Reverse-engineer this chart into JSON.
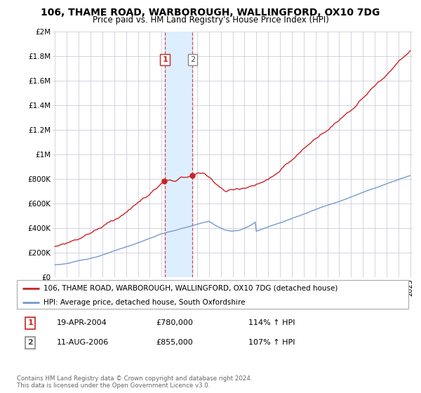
{
  "title": "106, THAME ROAD, WARBOROUGH, WALLINGFORD, OX10 7DG",
  "subtitle": "Price paid vs. HM Land Registry's House Price Index (HPI)",
  "ylim": [
    0,
    2000000
  ],
  "yticks": [
    0,
    200000,
    400000,
    600000,
    800000,
    1000000,
    1200000,
    1400000,
    1600000,
    1800000,
    2000000
  ],
  "ytick_labels": [
    "£0",
    "£200K",
    "£400K",
    "£600K",
    "£800K",
    "£1M",
    "£1.2M",
    "£1.4M",
    "£1.6M",
    "£1.8M",
    "£2M"
  ],
  "hpi_color": "#7799cc",
  "price_color": "#cc2222",
  "transaction1": {
    "date": "19-APR-2004",
    "price": 780000,
    "hpi_pct": "114%",
    "label": "1",
    "year": 2004.29
  },
  "transaction2": {
    "date": "11-AUG-2006",
    "price": 855000,
    "hpi_pct": "107%",
    "label": "2",
    "year": 2006.62
  },
  "legend_line1": "106, THAME ROAD, WARBOROUGH, WALLINGFORD, OX10 7DG (detached house)",
  "legend_line2": "HPI: Average price, detached house, South Oxfordshire",
  "footer": "Contains HM Land Registry data © Crown copyright and database right 2024.\nThis data is licensed under the Open Government Licence v3.0.",
  "bg_color": "#ffffff",
  "grid_color": "#ccccdd",
  "highlight_color": "#ddeeff",
  "x_start_year": 1995,
  "x_end_year": 2025
}
